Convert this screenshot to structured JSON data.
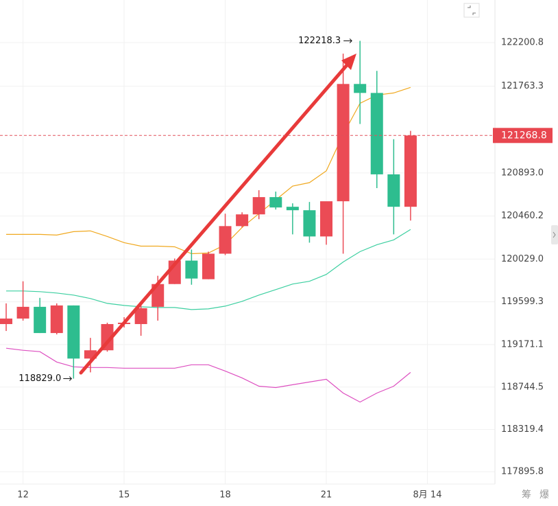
{
  "chart_data": {
    "type": "candlestick",
    "categories": [
      null,
      "12",
      null,
      null,
      null,
      null,
      null,
      "15",
      null,
      null,
      null,
      null,
      null,
      "18",
      null,
      null,
      null,
      null,
      null,
      "21",
      null,
      null,
      null,
      null,
      null,
      "8月 14"
    ],
    "open": [
      119376.6,
      119432.0,
      119549.7,
      119286.6,
      119563.5,
      119030.5,
      119113.6,
      119376.6,
      119376.6,
      119549.7,
      119778.1,
      120013.4,
      119826.6,
      120082.7,
      120359.5,
      120477.2,
      120650.3,
      120553.4,
      120518.8,
      120255.7,
      120608.7,
      121785.5,
      121695.5,
      120878.7,
      120553.4,
      null
    ],
    "high": [
      119584.3,
      119805.8,
      119639.7,
      119584.3,
      119563.5,
      119238.2,
      119390.5,
      119445.8,
      119584.3,
      119861.2,
      120034.2,
      120124.2,
      120103.4,
      120484.1,
      120498.0,
      120719.5,
      120705.6,
      120588.0,
      120601.8,
      120601.8,
      122090.0,
      122218.3,
      121917.0,
      121231.7,
      121314.8,
      null
    ],
    "low": [
      119307.4,
      119411.2,
      119286.6,
      119272.8,
      118829.0,
      118892.1,
      119099.7,
      119342.0,
      119258.9,
      119411.2,
      119778.1,
      119771.2,
      119826.6,
      120068.8,
      120345.7,
      120428.8,
      120525.7,
      120276.5,
      120193.4,
      120172.7,
      120082.7,
      121384.0,
      120740.3,
      120276.5,
      120414.9,
      null
    ],
    "close": [
      119432.0,
      119549.7,
      119286.6,
      119563.5,
      119030.5,
      119113.6,
      119376.6,
      119390.5,
      119535.8,
      119778.1,
      120013.4,
      119833.5,
      120082.7,
      120359.5,
      120477.2,
      120650.3,
      120546.4,
      120518.8,
      120255.7,
      120608.7,
      121785.5,
      121695.5,
      120878.7,
      120553.4,
      121268.8,
      null
    ],
    "up_color": "#eb4b55",
    "down_color": "#2ebd8f",
    "series": [
      {
        "color": "#f0a81e",
        "values": [
          120276.5,
          120276.5,
          120276.5,
          120269.6,
          120304.2,
          120311.1,
          120255.7,
          120193.4,
          120158.8,
          120158.8,
          120151.9,
          120082.7,
          120089.6,
          120172.7,
          120345.7,
          120484.1,
          120622.6,
          120761.0,
          120795.6,
          120913.3,
          121280.2,
          121591.7,
          121674.7,
          121695.5,
          121750.9,
          null
        ]
      },
      {
        "color": "#3ccfa0",
        "values": [
          119708.9,
          119708.9,
          119702.0,
          119688.1,
          119667.3,
          119632.7,
          119584.3,
          119563.5,
          119549.7,
          119542.8,
          119542.8,
          119522.0,
          119528.9,
          119556.6,
          119605.0,
          119667.3,
          119722.7,
          119778.1,
          119805.8,
          119875.0,
          119999.6,
          120103.4,
          120172.7,
          120221.1,
          120324.9,
          null
        ]
      },
      {
        "color": "#dd4fc0",
        "values": [
          119134.4,
          119113.6,
          119099.7,
          118995.9,
          118947.5,
          118940.5,
          118940.5,
          118933.6,
          118933.6,
          118933.6,
          118933.6,
          118968.2,
          118968.2,
          118905.9,
          118836.7,
          118753.6,
          118739.8,
          118767.5,
          118795.2,
          118822.9,
          118684.4,
          118594.4,
          118684.4,
          118753.6,
          118892.1,
          null
        ]
      }
    ],
    "ylim": [
      117771.8,
      122627.9
    ],
    "yticks": [
      122200.8,
      121763.3,
      {
        "value": 120893.0,
        "label": "120893.0"
      },
      120460.2,
      {
        "value": 120029.0,
        "label": "120029.0"
      },
      119599.3,
      119171.1,
      118744.5,
      118319.4,
      117895.8
    ],
    "grid": true,
    "current_price": 121268.8,
    "high_annotation": 122218.3,
    "low_annotation": {
      "value": 118829.0,
      "label": "118829.0"
    }
  },
  "footer_tabs": [
    "筹",
    "爆"
  ]
}
